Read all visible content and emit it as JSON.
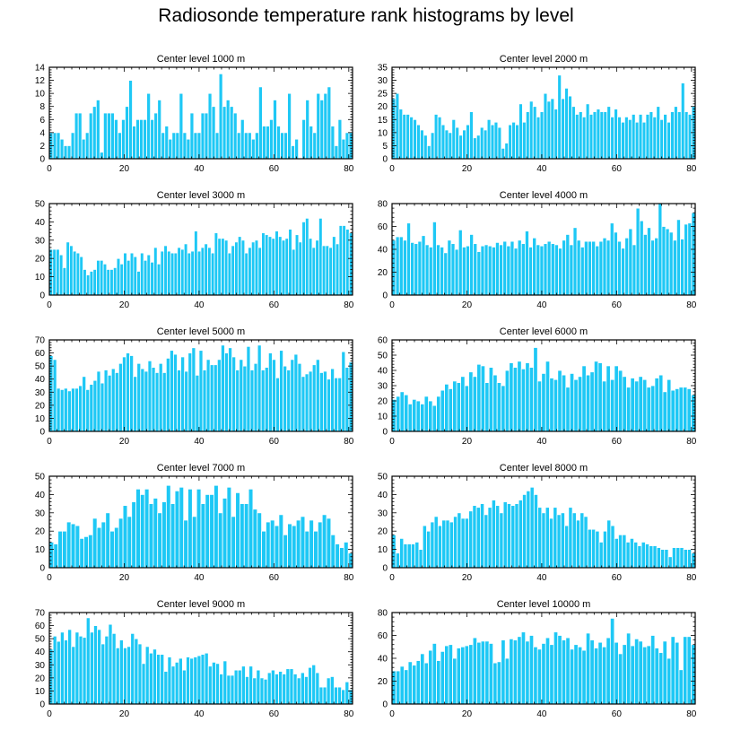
{
  "title": "Radiosonde temperature rank histograms by level",
  "colors": {
    "bar": "#1ec8f5",
    "bar_edge": "#ffffff",
    "axis": "#000000",
    "background": "#ffffff"
  },
  "chart_data": [
    {
      "type": "bar",
      "title": "Center level 1000 m",
      "xlabel": "",
      "ylabel": "",
      "xlim": [
        0,
        81
      ],
      "xticks": [
        0,
        20,
        40,
        60,
        80
      ],
      "ylim": [
        0,
        14
      ],
      "yticks": [
        0,
        2,
        4,
        6,
        8,
        10,
        12,
        14
      ],
      "values": [
        4,
        4,
        4,
        3,
        2,
        2,
        4,
        7,
        7,
        3,
        4,
        7,
        8,
        9,
        1,
        7,
        7,
        7,
        6,
        4,
        6,
        8,
        12,
        5,
        6,
        6,
        6,
        10,
        6,
        7,
        9,
        4,
        5,
        3,
        4,
        4,
        10,
        4,
        3,
        7,
        4,
        4,
        7,
        7,
        10,
        8,
        4,
        13,
        8,
        9,
        8,
        7,
        4,
        6,
        4,
        4,
        3,
        4,
        11,
        5,
        5,
        6,
        9,
        5,
        4,
        4,
        10,
        2,
        3,
        0,
        6,
        9,
        5,
        4,
        10,
        9,
        10,
        11,
        5,
        2,
        6,
        3,
        4,
        4
      ]
    },
    {
      "type": "bar",
      "title": "Center level 2000 m",
      "xlabel": "",
      "ylabel": "",
      "xlim": [
        0,
        81
      ],
      "xticks": [
        0,
        20,
        40,
        60,
        80
      ],
      "ylim": [
        0,
        35
      ],
      "yticks": [
        0,
        5,
        10,
        15,
        20,
        25,
        30,
        35
      ],
      "values": [
        23,
        25,
        19,
        17,
        17,
        16,
        15,
        13,
        11,
        9,
        5,
        10,
        17,
        16,
        13,
        11,
        10,
        15,
        12,
        9,
        11,
        13,
        18,
        8,
        9,
        12,
        11,
        15,
        13,
        14,
        12,
        4,
        6,
        13,
        14,
        13,
        21,
        14,
        18,
        22,
        20,
        16,
        18,
        25,
        22,
        23,
        19,
        32,
        23,
        27,
        24,
        20,
        17,
        18,
        16,
        21,
        17,
        18,
        19,
        18,
        18,
        20,
        16,
        19,
        16,
        14,
        16,
        15,
        17,
        14,
        17,
        14,
        17,
        18,
        16,
        20,
        15,
        17,
        14,
        18,
        20,
        18,
        29,
        18,
        17,
        20
      ]
    },
    {
      "type": "bar",
      "title": "Center level 3000 m",
      "xlabel": "",
      "ylabel": "",
      "xlim": [
        0,
        81
      ],
      "xticks": [
        0,
        20,
        40,
        60,
        80
      ],
      "ylim": [
        0,
        50
      ],
      "yticks": [
        0,
        10,
        20,
        30,
        40,
        50
      ],
      "values": [
        25,
        25,
        25,
        22,
        15,
        29,
        27,
        24,
        23,
        21,
        14,
        11,
        13,
        14,
        19,
        19,
        17,
        14,
        14,
        15,
        20,
        17,
        23,
        19,
        23,
        21,
        13,
        23,
        19,
        22,
        18,
        26,
        17,
        24,
        27,
        24,
        23,
        23,
        26,
        25,
        28,
        23,
        24,
        35,
        24,
        26,
        28,
        26,
        23,
        34,
        31,
        31,
        30,
        23,
        27,
        29,
        32,
        30,
        23,
        26,
        29,
        30,
        26,
        34,
        33,
        32,
        31,
        35,
        32,
        30,
        31,
        36,
        25,
        33,
        29,
        40,
        42,
        31,
        26,
        30,
        42,
        27,
        27,
        26,
        32,
        28,
        38,
        38,
        36,
        34
      ]
    },
    {
      "type": "bar",
      "title": "Center level 4000 m",
      "xlabel": "",
      "ylabel": "",
      "xlim": [
        0,
        81
      ],
      "xticks": [
        0,
        20,
        40,
        60,
        80
      ],
      "ylim": [
        0,
        80
      ],
      "yticks": [
        0,
        20,
        40,
        60,
        80
      ],
      "values": [
        48,
        51,
        51,
        48,
        63,
        46,
        45,
        47,
        52,
        44,
        42,
        64,
        44,
        42,
        37,
        48,
        45,
        40,
        57,
        42,
        43,
        53,
        45,
        38,
        43,
        44,
        43,
        42,
        46,
        44,
        47,
        43,
        47,
        41,
        48,
        45,
        56,
        42,
        50,
        44,
        43,
        45,
        47,
        45,
        44,
        41,
        48,
        53,
        44,
        59,
        48,
        42,
        47,
        47,
        47,
        43,
        47,
        50,
        48,
        63,
        55,
        47,
        41,
        50,
        58,
        44,
        76,
        65,
        53,
        59,
        48,
        50,
        81,
        60,
        58,
        55,
        48,
        66,
        49,
        62,
        63,
        72
      ]
    },
    {
      "type": "bar",
      "title": "Center level 5000 m",
      "xlabel": "",
      "ylabel": "",
      "xlim": [
        0,
        81
      ],
      "xticks": [
        0,
        20,
        40,
        60,
        80
      ],
      "ylim": [
        0,
        70
      ],
      "yticks": [
        0,
        10,
        20,
        30,
        40,
        50,
        60,
        70
      ],
      "values": [
        58,
        55,
        33,
        32,
        33,
        31,
        33,
        33,
        35,
        42,
        32,
        36,
        39,
        46,
        37,
        47,
        43,
        48,
        45,
        52,
        57,
        60,
        58,
        42,
        52,
        48,
        46,
        54,
        49,
        45,
        52,
        45,
        56,
        62,
        59,
        47,
        57,
        46,
        60,
        64,
        43,
        62,
        47,
        55,
        51,
        51,
        55,
        66,
        60,
        64,
        57,
        47,
        55,
        50,
        65,
        47,
        52,
        66,
        47,
        49,
        60,
        55,
        41,
        62,
        50,
        47,
        55,
        59,
        52,
        42,
        44,
        46,
        51,
        55,
        45,
        46,
        40,
        48,
        41,
        41,
        61,
        49,
        53
      ]
    },
    {
      "type": "bar",
      "title": "Center level 6000 m",
      "xlabel": "",
      "ylabel": "",
      "xlim": [
        0,
        81
      ],
      "xticks": [
        0,
        20,
        40,
        60,
        80
      ],
      "ylim": [
        0,
        60
      ],
      "yticks": [
        0,
        10,
        20,
        30,
        40,
        50,
        60
      ],
      "values": [
        21,
        23,
        26,
        24,
        18,
        21,
        20,
        18,
        23,
        20,
        17,
        23,
        27,
        31,
        28,
        33,
        32,
        36,
        30,
        39,
        36,
        44,
        43,
        32,
        42,
        37,
        32,
        30,
        40,
        45,
        42,
        46,
        41,
        45,
        42,
        55,
        33,
        38,
        46,
        35,
        34,
        40,
        37,
        29,
        38,
        34,
        36,
        43,
        37,
        39,
        46,
        45,
        33,
        43,
        34,
        43,
        40,
        36,
        29,
        35,
        33,
        36,
        34,
        29,
        30,
        35,
        37,
        26,
        34,
        27,
        28,
        29,
        29,
        28,
        24
      ]
    },
    {
      "type": "bar",
      "title": "Center level 7000 m",
      "xlabel": "",
      "ylabel": "",
      "xlim": [
        0,
        81
      ],
      "xticks": [
        0,
        20,
        40,
        60,
        80
      ],
      "ylim": [
        0,
        50
      ],
      "yticks": [
        0,
        10,
        20,
        30,
        40,
        50
      ],
      "values": [
        14,
        13,
        20,
        20,
        25,
        24,
        23,
        16,
        17,
        18,
        27,
        22,
        25,
        30,
        20,
        22,
        27,
        34,
        28,
        36,
        43,
        40,
        43,
        35,
        38,
        30,
        36,
        45,
        35,
        42,
        44,
        26,
        43,
        28,
        43,
        35,
        40,
        40,
        45,
        30,
        38,
        44,
        28,
        41,
        35,
        35,
        43,
        32,
        30,
        20,
        25,
        26,
        23,
        29,
        18,
        24,
        23,
        26,
        28,
        20,
        26,
        20,
        25,
        29,
        27,
        18,
        13,
        11,
        14,
        8
      ]
    },
    {
      "type": "bar",
      "title": "Center level 8000 m",
      "xlabel": "",
      "ylabel": "",
      "xlim": [
        0,
        81
      ],
      "xticks": [
        0,
        20,
        40,
        60,
        80
      ],
      "ylim": [
        0,
        50
      ],
      "yticks": [
        0,
        10,
        20,
        30,
        40,
        50
      ],
      "values": [
        18,
        8,
        16,
        13,
        13,
        13,
        14,
        10,
        23,
        20,
        25,
        28,
        23,
        26,
        26,
        25,
        28,
        30,
        27,
        27,
        31,
        34,
        33,
        35,
        29,
        33,
        37,
        34,
        30,
        36,
        35,
        34,
        35,
        37,
        40,
        42,
        44,
        40,
        33,
        30,
        33,
        27,
        33,
        29,
        30,
        23,
        33,
        30,
        26,
        30,
        28,
        21,
        21,
        20,
        14,
        20,
        26,
        23,
        16,
        18,
        18,
        14,
        16,
        14,
        12,
        14,
        13,
        12,
        12,
        11,
        10,
        10,
        6,
        11,
        11,
        11,
        10,
        10,
        8
      ]
    },
    {
      "type": "bar",
      "title": "Center level 9000 m",
      "xlabel": "",
      "ylabel": "",
      "xlim": [
        0,
        81
      ],
      "xticks": [
        0,
        20,
        40,
        60,
        80
      ],
      "ylim": [
        0,
        70
      ],
      "yticks": [
        0,
        10,
        20,
        30,
        40,
        50,
        60,
        70
      ],
      "values": [
        42,
        52,
        48,
        55,
        49,
        57,
        44,
        55,
        52,
        51,
        66,
        55,
        60,
        57,
        46,
        52,
        61,
        54,
        43,
        49,
        43,
        44,
        54,
        50,
        46,
        31,
        44,
        39,
        42,
        38,
        38,
        25,
        36,
        29,
        32,
        35,
        26,
        36,
        35,
        36,
        37,
        38,
        39,
        29,
        32,
        31,
        23,
        33,
        22,
        22,
        26,
        26,
        29,
        21,
        29,
        20,
        26,
        20,
        19,
        24,
        26,
        23,
        25,
        23,
        27,
        27,
        23,
        20,
        24,
        21,
        28,
        30,
        24,
        13,
        13,
        20,
        21,
        13,
        13,
        11,
        17,
        11
      ]
    },
    {
      "type": "bar",
      "title": "Center level 10000 m",
      "xlabel": "",
      "ylabel": "",
      "xlim": [
        0,
        81
      ],
      "xticks": [
        0,
        20,
        40,
        60,
        80
      ],
      "ylim": [
        0,
        80
      ],
      "yticks": [
        0,
        20,
        40,
        60,
        80
      ],
      "values": [
        29,
        29,
        33,
        30,
        37,
        34,
        38,
        44,
        36,
        47,
        53,
        38,
        46,
        51,
        52,
        40,
        49,
        50,
        51,
        52,
        58,
        54,
        55,
        55,
        53,
        36,
        37,
        56,
        40,
        57,
        56,
        59,
        63,
        55,
        60,
        50,
        48,
        53,
        58,
        52,
        63,
        60,
        56,
        58,
        48,
        52,
        50,
        47,
        62,
        56,
        49,
        54,
        50,
        58,
        75,
        54,
        44,
        52,
        62,
        51,
        57,
        55,
        50,
        51,
        60,
        49,
        45,
        55,
        40,
        59,
        54,
        30,
        59,
        59,
        52
      ]
    }
  ]
}
